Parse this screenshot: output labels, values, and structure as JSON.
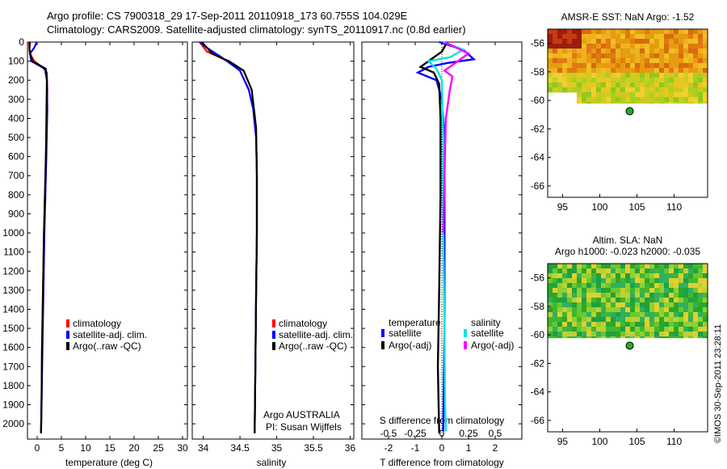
{
  "header": {
    "line1": "Argo profile: CS 7900318_29 17-Sep-2011 20110918_173 60.755S 104.029E",
    "line2": "Climatology: CARS2009. Satellite-adjusted climatology: synTS_20110917.nc (0.8d earlier)"
  },
  "watermark": "©IMOS 30-Sep-2011 23:28:11",
  "colors": {
    "red": "#ff0000",
    "blue": "#0000ff",
    "black": "#000000",
    "cyan": "#00e5e5",
    "magenta": "#ff00ff",
    "land_marker": "#22b022"
  },
  "chart_data": [
    {
      "type": "line",
      "id": "temperature",
      "xlabel": "temperature (deg C)",
      "ylabel": "",
      "xlim": [
        -2,
        31
      ],
      "ylim": [
        2080,
        0
      ],
      "xticks": [
        0,
        5,
        10,
        15,
        20,
        25,
        30
      ],
      "yticks": [
        0,
        100,
        200,
        300,
        400,
        500,
        600,
        700,
        800,
        900,
        1000,
        1100,
        1200,
        1300,
        1400,
        1500,
        1600,
        1700,
        1800,
        1900,
        2000
      ],
      "legend": [
        "climatology",
        "satellite-adj. clim.",
        "Argo(..raw -QC)"
      ],
      "legend_colors": [
        "#ff0000",
        "#0000ff",
        "#000000"
      ],
      "series": [
        {
          "name": "climatology",
          "color": "#ff0000",
          "x": [
            -1.7,
            -1.5,
            -0.6,
            1.4,
            2.0,
            2.1,
            2.0,
            1.8,
            1.6,
            1.4,
            1.2,
            1.0,
            0.9,
            0.8
          ],
          "y": [
            0,
            60,
            100,
            140,
            160,
            250,
            400,
            600,
            800,
            1000,
            1300,
            1600,
            1900,
            2050
          ]
        },
        {
          "name": "satellite-adj. clim.",
          "color": "#0000ff",
          "x": [
            -0.1,
            -0.6,
            -1.5,
            -1.2,
            1.6,
            2.0,
            2.1,
            1.9,
            1.7,
            1.5,
            1.3,
            1.1,
            0.9,
            0.8
          ],
          "y": [
            0,
            30,
            60,
            100,
            140,
            200,
            350,
            600,
            800,
            1000,
            1300,
            1600,
            1900,
            2040
          ]
        },
        {
          "name": "Argo(..raw -QC)",
          "color": "#000000",
          "x": [
            -1.5,
            -1.6,
            -1.3,
            -1.0,
            1.8,
            2.0,
            1.9,
            1.8,
            1.6,
            1.4,
            1.2,
            1.0,
            0.9,
            0.8
          ],
          "y": [
            0,
            40,
            75,
            100,
            140,
            200,
            400,
            600,
            800,
            1000,
            1300,
            1600,
            1900,
            2050
          ]
        }
      ]
    },
    {
      "type": "line",
      "id": "salinity",
      "xlabel": "salinity",
      "ylabel": "",
      "xlim": [
        33.85,
        36.05
      ],
      "ylim": [
        2080,
        0
      ],
      "xticks": [
        34,
        34.5,
        35,
        35.5,
        36
      ],
      "xtick_labels": [
        "34",
        "34.5",
        "35",
        "35.5",
        "36"
      ],
      "legend": [
        "climatology",
        "satellite-adj. clim.",
        "Argo(..raw -QC)"
      ],
      "legend_colors": [
        "#ff0000",
        "#0000ff",
        "#000000"
      ],
      "annotation": [
        "Argo AUSTRALIA",
        "PI: Susan Wijffels"
      ],
      "series": [
        {
          "name": "climatology",
          "color": "#ff0000",
          "x": [
            33.95,
            34.05,
            34.35,
            34.5,
            34.62,
            34.68,
            34.72,
            34.73,
            34.73,
            34.72,
            34.71,
            34.7
          ],
          "y": [
            0,
            50,
            100,
            150,
            250,
            350,
            500,
            700,
            1000,
            1300,
            1700,
            2050
          ]
        },
        {
          "name": "satellite-adj. clim.",
          "color": "#0000ff",
          "x": [
            33.95,
            34.05,
            34.25,
            34.5,
            34.62,
            34.68,
            34.72,
            34.73,
            34.73,
            34.72,
            34.71,
            34.7
          ],
          "y": [
            0,
            30,
            80,
            150,
            250,
            350,
            500,
            700,
            1000,
            1300,
            1700,
            2040
          ]
        },
        {
          "name": "Argo(..raw -QC)",
          "color": "#000000",
          "x": [
            33.98,
            34.12,
            34.28,
            34.35,
            34.55,
            34.66,
            34.72,
            34.73,
            34.73,
            34.72,
            34.71,
            34.7
          ],
          "y": [
            0,
            60,
            90,
            100,
            150,
            250,
            450,
            700,
            1000,
            1300,
            1700,
            2050
          ]
        }
      ]
    },
    {
      "type": "line",
      "id": "difference",
      "xlabel": "T difference from climatology",
      "xlabel_top": "S difference from climatology",
      "xlim": [
        -3,
        3
      ],
      "ylim": [
        2080,
        0
      ],
      "xticks": [
        -2,
        -1,
        0,
        1,
        2
      ],
      "xtick_labels": [
        "-2",
        "-1",
        "0",
        "1",
        "2"
      ],
      "s_ticks": [
        -0.5,
        -0.25,
        0,
        0.25,
        0.5
      ],
      "s_tick_labels": [
        "-0.5",
        "-0.25",
        "0",
        "0.25",
        "0.5"
      ],
      "legend_left_title": "temperature",
      "legend_right_title": "salinity",
      "legend_left": [
        "satellite",
        "Argo(-adj)"
      ],
      "legend_left_colors": [
        "#0000ff",
        "#000000"
      ],
      "legend_right": [
        "satellite",
        "Argo(-adj)"
      ],
      "legend_right_colors": [
        "#00e5e5",
        "#ff00ff"
      ],
      "series": [
        {
          "name": "temperature satellite",
          "color": "#0000ff",
          "x": [
            -0.1,
            0.8,
            1.2,
            0.2,
            -0.5,
            -0.9,
            -0.2,
            0.0,
            0.1,
            0.1,
            0.1,
            0.05
          ],
          "y": [
            0,
            40,
            90,
            110,
            130,
            160,
            200,
            300,
            500,
            1000,
            1500,
            2040
          ]
        },
        {
          "name": "temperature Argo(-adj)",
          "color": "#000000",
          "x": [
            0.2,
            0.0,
            -0.4,
            -0.8,
            -0.3,
            -0.1,
            -0.05,
            -0.05,
            -0.1,
            -0.15,
            -0.1
          ],
          "y": [
            0,
            50,
            90,
            130,
            160,
            220,
            400,
            800,
            1300,
            1700,
            2050
          ]
        },
        {
          "name": "salinity satellite",
          "color": "#00e5e5",
          "x": [
            0.05,
            0.8,
            0.3,
            -0.5,
            -0.2,
            0.0,
            0.05,
            0.05,
            0.1,
            0.12,
            0.15
          ],
          "y": [
            0,
            40,
            80,
            100,
            140,
            200,
            500,
            1000,
            1500,
            1900,
            2040
          ]
        },
        {
          "name": "salinity Argo(-adj)",
          "color": "#ff00ff",
          "x": [
            0.1,
            1.0,
            0.5,
            0.1,
            0.4,
            0.3,
            0.15,
            0.1,
            0.05
          ],
          "y": [
            0,
            60,
            110,
            150,
            180,
            250,
            400,
            700,
            1000
          ]
        }
      ]
    },
    {
      "type": "heatmap",
      "id": "sst_map",
      "title": "AMSR-E SST: NaN Argo: -1.52",
      "xlim": [
        93,
        114.5
      ],
      "ylim": [
        -66.8,
        -55
      ],
      "xticks": [
        95,
        100,
        105,
        110
      ],
      "yticks": [
        -56,
        -58,
        -60,
        -62,
        -64,
        -66
      ],
      "data_extent_lat": [
        -55,
        -60.2
      ],
      "argo_position": {
        "lon": 104.029,
        "lat": -60.755
      }
    },
    {
      "type": "heatmap",
      "id": "sla_map",
      "title_line1": "Altim. SLA: NaN",
      "title_line2": "Argo h1000: -0.023 h2000: -0.035",
      "xlim": [
        93,
        114.5
      ],
      "ylim": [
        -66.8,
        -55
      ],
      "xticks": [
        95,
        100,
        105,
        110
      ],
      "yticks": [
        -56,
        -58,
        -60,
        -62,
        -64,
        -66
      ],
      "data_extent_lat": [
        -55,
        -60.2
      ],
      "argo_position": {
        "lon": 104.029,
        "lat": -60.755
      }
    }
  ]
}
